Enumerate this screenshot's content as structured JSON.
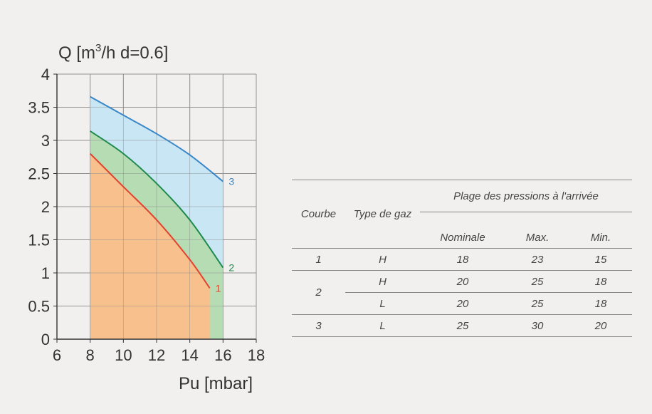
{
  "chart_data": {
    "type": "area",
    "title": "",
    "ylabel_prefix": "Q [m",
    "ylabel_sup": "3",
    "ylabel_suffix": "/h d=0.6]",
    "xlabel": "Pu [mbar]",
    "xlim": [
      6,
      18
    ],
    "ylim": [
      0,
      4
    ],
    "xticks": [
      "6",
      "8",
      "10",
      "12",
      "14",
      "16",
      "18"
    ],
    "yticks": [
      "0",
      "0.5",
      "1",
      "1.5",
      "2",
      "2.5",
      "3",
      "3.5",
      "4"
    ],
    "grid": true,
    "series": [
      {
        "name": "3",
        "color": "#3a87c8",
        "fill": "#c9e6f5",
        "x": [
          8,
          10,
          12,
          14,
          16
        ],
        "y": [
          3.66,
          3.38,
          3.1,
          2.78,
          2.38
        ]
      },
      {
        "name": "2",
        "color": "#1f8a4e",
        "fill": "#b6dcb4",
        "x": [
          8,
          10,
          12,
          14,
          16
        ],
        "y": [
          3.14,
          2.8,
          2.35,
          1.8,
          1.08
        ]
      },
      {
        "name": "1",
        "color": "#e0442f",
        "fill": "#f7c08c",
        "x": [
          8,
          10,
          12,
          14,
          15.2
        ],
        "y": [
          2.8,
          2.3,
          1.8,
          1.2,
          0.77
        ]
      }
    ]
  },
  "table": {
    "col_courbe": "Courbe",
    "col_type": "Type de gaz",
    "group_header": "Plage des pressions à l'arrivée",
    "col_nominale": "Nominale",
    "col_max": "Max.",
    "col_min": "Min.",
    "rows": [
      {
        "courbe": "1",
        "type": "H",
        "nominale": "18",
        "max": "23",
        "min": "15"
      },
      {
        "courbe": "2",
        "type": "H",
        "nominale": "20",
        "max": "25",
        "min": "18"
      },
      {
        "courbe": "",
        "type": "L",
        "nominale": "20",
        "max": "25",
        "min": "18"
      },
      {
        "courbe": "3",
        "type": "L",
        "nominale": "25",
        "max": "30",
        "min": "20"
      }
    ]
  }
}
